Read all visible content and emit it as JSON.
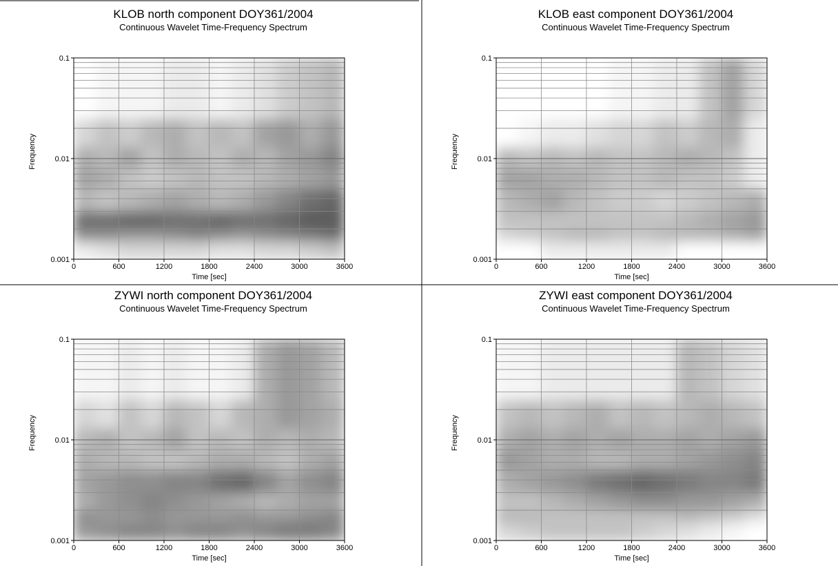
{
  "chart_data": [
    {
      "type": "heatmap",
      "title": "KLOB north component DOY361/2004",
      "subtitle": "Continuous Wavelet Time-Frequency Spectrum",
      "x_label": "Time [sec]",
      "y_label": "Frequency",
      "xlim": [
        0,
        3600
      ],
      "ylim": [
        0.001,
        0.1
      ],
      "yscale": "log",
      "grid": true,
      "xticks": [
        0,
        600,
        1200,
        1800,
        2400,
        3000,
        3600
      ],
      "yticks": [
        0.001,
        0.01,
        0.1
      ],
      "yminor": [
        0.002,
        0.003,
        0.004,
        0.005,
        0.006,
        0.007,
        0.008,
        0.009,
        0.02,
        0.03,
        0.04,
        0.05,
        0.06,
        0.07,
        0.08,
        0.09
      ],
      "colormap": [
        "#ffffff",
        "#333333"
      ],
      "xbins": [
        0,
        300,
        600,
        900,
        1200,
        1500,
        1800,
        2100,
        2400,
        2700,
        3000,
        3300,
        3600
      ],
      "ybins": [
        0.001,
        0.0015,
        0.002,
        0.003,
        0.005,
        0.008,
        0.013,
        0.025,
        0.1
      ],
      "values": [
        [
          0.1,
          0.15,
          0.2,
          0.2,
          0.2,
          0.2,
          0.15,
          0.15,
          0.2,
          0.2,
          0.25,
          0.3
        ],
        [
          0.55,
          0.55,
          0.5,
          0.5,
          0.55,
          0.6,
          0.55,
          0.5,
          0.55,
          0.6,
          0.65,
          0.7
        ],
        [
          0.7,
          0.7,
          0.75,
          0.75,
          0.7,
          0.7,
          0.75,
          0.7,
          0.7,
          0.75,
          0.8,
          0.8
        ],
        [
          0.35,
          0.3,
          0.35,
          0.4,
          0.45,
          0.4,
          0.35,
          0.4,
          0.5,
          0.6,
          0.7,
          0.75
        ],
        [
          0.45,
          0.4,
          0.3,
          0.25,
          0.3,
          0.35,
          0.3,
          0.3,
          0.35,
          0.4,
          0.45,
          0.5
        ],
        [
          0.4,
          0.35,
          0.45,
          0.3,
          0.4,
          0.35,
          0.3,
          0.4,
          0.35,
          0.45,
          0.5,
          0.6
        ],
        [
          0.2,
          0.3,
          0.25,
          0.35,
          0.4,
          0.3,
          0.35,
          0.3,
          0.45,
          0.5,
          0.4,
          0.5
        ],
        [
          0,
          0.05,
          0.05,
          0.05,
          0.1,
          0.1,
          0.05,
          0.1,
          0.15,
          0.25,
          0.3,
          0.35
        ]
      ]
    },
    {
      "type": "heatmap",
      "title": "KLOB east component DOY361/2004",
      "subtitle": "Continuous Wavelet Time-Frequency Spectrum",
      "x_label": "Time [sec]",
      "y_label": "Frequency",
      "xlim": [
        0,
        3600
      ],
      "ylim": [
        0.001,
        0.1
      ],
      "yscale": "log",
      "grid": true,
      "xticks": [
        0,
        600,
        1200,
        1800,
        2400,
        3000,
        3600
      ],
      "yticks": [
        0.001,
        0.01,
        0.1
      ],
      "yminor": [
        0.002,
        0.003,
        0.004,
        0.005,
        0.006,
        0.007,
        0.008,
        0.009,
        0.02,
        0.03,
        0.04,
        0.05,
        0.06,
        0.07,
        0.08,
        0.09
      ],
      "colormap": [
        "#ffffff",
        "#333333"
      ],
      "xbins": [
        0,
        300,
        600,
        900,
        1200,
        1500,
        1800,
        2100,
        2400,
        2700,
        3000,
        3300,
        3600
      ],
      "ybins": [
        0.001,
        0.0015,
        0.002,
        0.003,
        0.005,
        0.008,
        0.013,
        0.025,
        0.1
      ],
      "values": [
        [
          0,
          0,
          0.1,
          0.1,
          0.1,
          0.1,
          0.1,
          0.1,
          0,
          0,
          0,
          0
        ],
        [
          0.2,
          0.25,
          0.3,
          0.35,
          0.35,
          0.3,
          0.3,
          0.35,
          0.35,
          0.35,
          0.4,
          0.45
        ],
        [
          0.3,
          0.3,
          0.3,
          0.3,
          0.3,
          0.3,
          0.3,
          0.3,
          0.35,
          0.4,
          0.45,
          0.5
        ],
        [
          0.35,
          0.4,
          0.45,
          0.35,
          0.3,
          0.25,
          0.25,
          0.2,
          0.25,
          0.3,
          0.35,
          0.4
        ],
        [
          0.45,
          0.45,
          0.4,
          0.4,
          0.35,
          0.3,
          0.3,
          0.35,
          0.3,
          0.3,
          0.25,
          0.1
        ],
        [
          0.35,
          0.3,
          0.35,
          0.3,
          0.35,
          0.3,
          0.3,
          0.35,
          0.4,
          0.35,
          0.3,
          0.1
        ],
        [
          0,
          0.05,
          0.1,
          0.1,
          0.15,
          0.2,
          0.2,
          0.3,
          0.25,
          0.35,
          0.4,
          0.1
        ],
        [
          0,
          0,
          0,
          0,
          0,
          0.05,
          0.05,
          0.1,
          0.1,
          0.3,
          0.45,
          0.2
        ]
      ]
    },
    {
      "type": "heatmap",
      "title": "ZYWI north component DOY361/2004",
      "subtitle": "Continuous Wavelet Time-Frequency Spectrum",
      "x_label": "Time [sec]",
      "y_label": "Frequency",
      "xlim": [
        0,
        3600
      ],
      "ylim": [
        0.001,
        0.1
      ],
      "yscale": "log",
      "grid": true,
      "xticks": [
        0,
        600,
        1200,
        1800,
        2400,
        3000,
        3600
      ],
      "yticks": [
        0.001,
        0.01,
        0.1
      ],
      "yminor": [
        0.002,
        0.003,
        0.004,
        0.005,
        0.006,
        0.007,
        0.008,
        0.009,
        0.02,
        0.03,
        0.04,
        0.05,
        0.06,
        0.07,
        0.08,
        0.09
      ],
      "colormap": [
        "#ffffff",
        "#333333"
      ],
      "xbins": [
        0,
        300,
        600,
        900,
        1200,
        1500,
        1800,
        2100,
        2400,
        2700,
        3000,
        3300,
        3600
      ],
      "ybins": [
        0.001,
        0.0015,
        0.002,
        0.003,
        0.005,
        0.008,
        0.013,
        0.025,
        0.1
      ],
      "values": [
        [
          0.5,
          0.55,
          0.6,
          0.6,
          0.55,
          0.6,
          0.6,
          0.55,
          0.6,
          0.65,
          0.65,
          0.6
        ],
        [
          0.55,
          0.5,
          0.5,
          0.55,
          0.5,
          0.5,
          0.5,
          0.55,
          0.5,
          0.5,
          0.55,
          0.6
        ],
        [
          0.4,
          0.5,
          0.55,
          0.6,
          0.55,
          0.5,
          0.45,
          0.4,
          0.35,
          0.4,
          0.45,
          0.45
        ],
        [
          0.45,
          0.5,
          0.55,
          0.55,
          0.6,
          0.6,
          0.7,
          0.75,
          0.6,
          0.45,
          0.55,
          0.6
        ],
        [
          0.4,
          0.35,
          0.35,
          0.3,
          0.3,
          0.35,
          0.4,
          0.4,
          0.35,
          0.3,
          0.4,
          0.45
        ],
        [
          0.35,
          0.4,
          0.3,
          0.35,
          0.45,
          0.3,
          0.35,
          0.3,
          0.4,
          0.35,
          0.4,
          0.35
        ],
        [
          0.2,
          0.15,
          0.3,
          0.2,
          0.35,
          0.3,
          0.2,
          0.35,
          0.4,
          0.5,
          0.45,
          0.4
        ],
        [
          0.05,
          0.05,
          0.1,
          0.05,
          0.1,
          0.05,
          0.05,
          0.1,
          0.4,
          0.5,
          0.45,
          0.35
        ]
      ]
    },
    {
      "type": "heatmap",
      "title": "ZYWI east component DOY361/2004",
      "subtitle": "Continuous Wavelet Time-Frequency Spectrum",
      "x_label": "Time [sec]",
      "y_label": "Frequency",
      "xlim": [
        0,
        3600
      ],
      "ylim": [
        0.001,
        0.1
      ],
      "yscale": "log",
      "grid": true,
      "xticks": [
        0,
        600,
        1200,
        1800,
        2400,
        3000,
        3600
      ],
      "yticks": [
        0.001,
        0.01,
        0.1
      ],
      "yminor": [
        0.002,
        0.003,
        0.004,
        0.005,
        0.006,
        0.007,
        0.008,
        0.009,
        0.02,
        0.03,
        0.04,
        0.05,
        0.06,
        0.07,
        0.08,
        0.09
      ],
      "colormap": [
        "#ffffff",
        "#333333"
      ],
      "xbins": [
        0,
        300,
        600,
        900,
        1200,
        1500,
        1800,
        2100,
        2400,
        2700,
        3000,
        3300,
        3600
      ],
      "ybins": [
        0.001,
        0.0015,
        0.002,
        0.003,
        0.005,
        0.008,
        0.013,
        0.025,
        0.1
      ],
      "values": [
        [
          0.2,
          0.25,
          0.3,
          0.3,
          0.3,
          0.3,
          0.25,
          0.2,
          0.15,
          0.1,
          0.05,
          0
        ],
        [
          0.35,
          0.35,
          0.3,
          0.3,
          0.3,
          0.3,
          0.3,
          0.3,
          0.35,
          0.3,
          0.25,
          0.15
        ],
        [
          0.3,
          0.3,
          0.35,
          0.4,
          0.45,
          0.5,
          0.55,
          0.55,
          0.5,
          0.5,
          0.45,
          0.4
        ],
        [
          0.4,
          0.45,
          0.5,
          0.55,
          0.65,
          0.7,
          0.75,
          0.7,
          0.65,
          0.6,
          0.6,
          0.65
        ],
        [
          0.5,
          0.45,
          0.4,
          0.4,
          0.35,
          0.35,
          0.4,
          0.4,
          0.45,
          0.5,
          0.55,
          0.6
        ],
        [
          0.4,
          0.45,
          0.4,
          0.45,
          0.4,
          0.45,
          0.4,
          0.4,
          0.45,
          0.4,
          0.45,
          0.5
        ],
        [
          0.3,
          0.35,
          0.3,
          0.35,
          0.4,
          0.3,
          0.35,
          0.3,
          0.35,
          0.4,
          0.35,
          0.3
        ],
        [
          0.05,
          0.05,
          0.1,
          0.1,
          0.1,
          0.1,
          0.1,
          0.1,
          0.35,
          0.3,
          0.2,
          0.15
        ]
      ]
    }
  ]
}
